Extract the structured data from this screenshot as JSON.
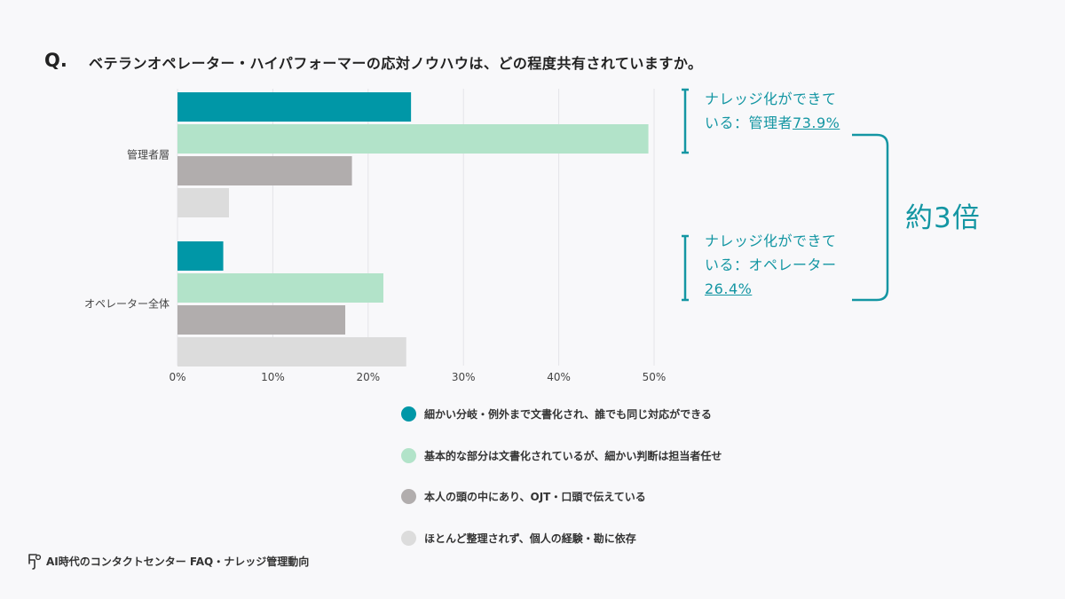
{
  "question": {
    "mark": "Q.",
    "text": "ベテランオペレーター・ハイパフォーマーの応対ノウハウは、どの程度共有されていますか。"
  },
  "chart_data": {
    "type": "bar",
    "orientation": "horizontal",
    "categories": [
      "管理者層",
      "オペレーター全体"
    ],
    "series": [
      {
        "name": "細かい分岐・例外まで文書化され、誰でも同じ対応ができる",
        "color": "#0097a7",
        "values": [
          24.5,
          4.8
        ]
      },
      {
        "name": "基本的な部分は文書化されているが、細かい判断は担当者任せ",
        "color": "#b2e3c9",
        "values": [
          49.4,
          21.6
        ]
      },
      {
        "name": "本人の頭の中にあり、OJT・口頭で伝えている",
        "color": "#b1adad",
        "values": [
          18.3,
          17.6
        ]
      },
      {
        "name": "ほとんど整理されず、個人の経験・勘に依存",
        "color": "#dcdcdc",
        "values": [
          5.4,
          24.0
        ]
      }
    ],
    "xlim": [
      0,
      50
    ],
    "xticks": [
      "0%",
      "10%",
      "20%",
      "30%",
      "40%",
      "50%"
    ],
    "grid": true,
    "legend_position": "bottom"
  },
  "annotations": {
    "manager": {
      "line1": "ナレッジ化ができて",
      "line2": "いる：管理者",
      "pct": "73.9%"
    },
    "operator": {
      "line1": "ナレッジ化ができて",
      "line2": "いる：オペレーター",
      "pct": "26.4%"
    },
    "ratio": "約3倍",
    "accent_color": "#1496a3"
  },
  "footer": {
    "text": "AI時代のコンタクトセンター FAQ・ナレッジ管理動向",
    "icon": "logo-icon"
  }
}
